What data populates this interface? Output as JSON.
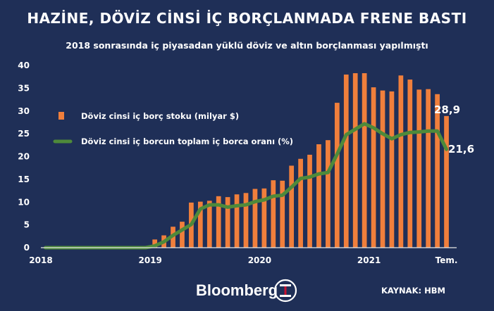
{
  "header": {
    "title": "HAZİNE, DÖVİZ CİNSİ İÇ BORÇLANMADA FRENE BASTI",
    "subtitle": "2018 sonrasında iç piyasadan yüklü döviz ve altın borçlanması yapılmıştı"
  },
  "footer": {
    "brand": "Bloomberg",
    "source": "KAYNAK: HBM"
  },
  "colors": {
    "background": "#1f2f57",
    "bar": "#f07f3c",
    "line": "#4e8a3a"
  },
  "chart_data": {
    "type": "bar",
    "ylim": [
      0,
      40
    ],
    "yticks": [
      "0",
      "5",
      "10",
      "15",
      "20",
      "25",
      "30",
      "35",
      "40"
    ],
    "xtick_labels": [
      "2018",
      "2019",
      "2020",
      "2021",
      "Tem."
    ],
    "legend_position": "left-middle",
    "grid": false,
    "series": [
      {
        "name": "Döviz cinsi iç borç stoku (milyar $)",
        "kind": "bar",
        "values": [
          0,
          0,
          0,
          0,
          0,
          0,
          0,
          0,
          0,
          0,
          0,
          0,
          1.8,
          2.7,
          4.6,
          5.7,
          9.9,
          10.1,
          10.3,
          11.3,
          11.1,
          11.7,
          12.0,
          12.9,
          13.0,
          14.8,
          14.7,
          18.0,
          19.5,
          20.4,
          22.7,
          23.6,
          31.8,
          38.0,
          38.3,
          38.3,
          35.2,
          34.5,
          34.3,
          37.8,
          36.9,
          34.7,
          34.8,
          33.7,
          28.9
        ]
      },
      {
        "name": "Döviz cinsi iç borcun toplam iç borca oranı (%)",
        "kind": "line",
        "values": [
          0,
          0,
          0,
          0,
          0,
          0,
          0,
          0,
          0,
          0,
          0,
          0,
          0.4,
          1.3,
          2.7,
          3.9,
          5.1,
          8.5,
          9.4,
          9.4,
          8.9,
          9.2,
          9.4,
          10.1,
          10.5,
          11.3,
          11.5,
          13.3,
          15.2,
          15.5,
          16.2,
          16.5,
          20.5,
          24.8,
          26.0,
          27.2,
          26.3,
          25.0,
          23.9,
          24.8,
          25.3,
          25.4,
          25.6,
          25.6,
          21.6
        ]
      }
    ],
    "end_labels": [
      "28,9",
      "21,6"
    ]
  }
}
